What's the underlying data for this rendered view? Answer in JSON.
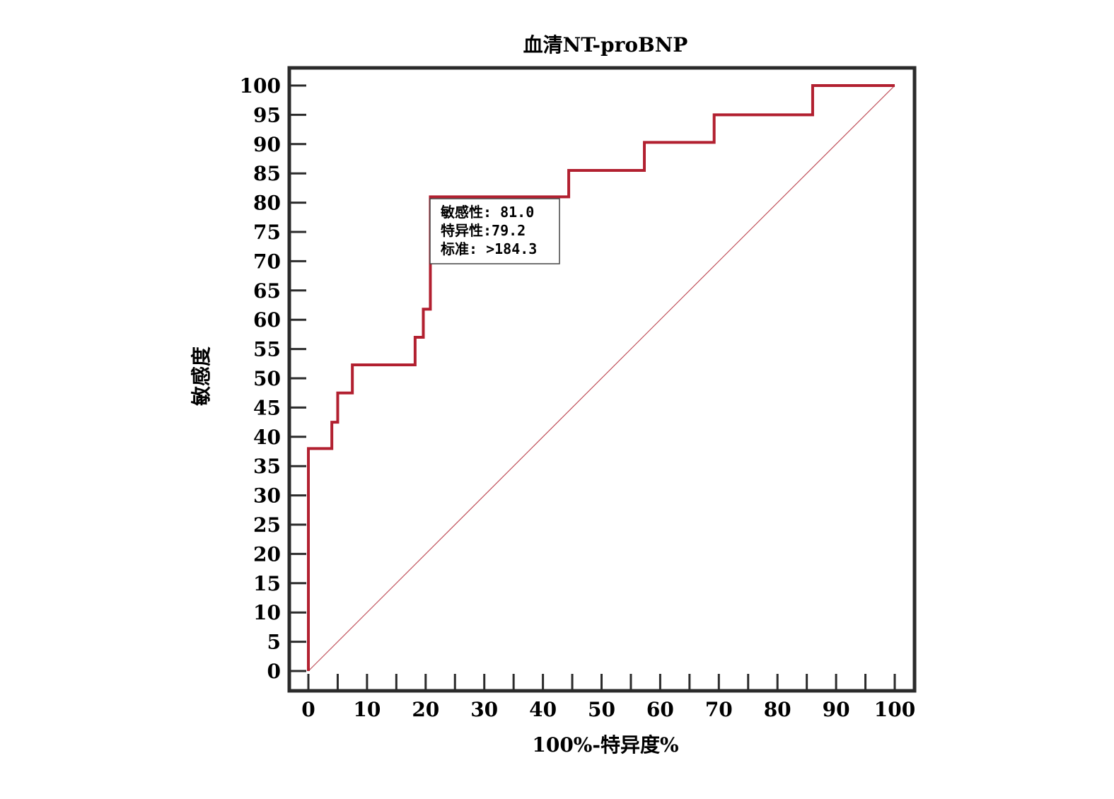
{
  "chart_data": {
    "type": "line",
    "title": "血清NT-proBNP",
    "xlabel": "100%-特异度%",
    "ylabel": "敏感度",
    "xlim": [
      0,
      100
    ],
    "ylim": [
      0,
      100
    ],
    "x_ticks": [
      0,
      10,
      20,
      30,
      40,
      50,
      60,
      70,
      80,
      90,
      100
    ],
    "y_ticks": [
      0,
      5,
      10,
      15,
      20,
      25,
      30,
      35,
      40,
      45,
      50,
      55,
      60,
      65,
      70,
      75,
      80,
      85,
      90,
      95,
      100
    ],
    "grid": false,
    "series": [
      {
        "color": "#b22030",
        "x": [
          0,
          0,
          4,
          4,
          5,
          5,
          7.5,
          7.5,
          18.2,
          18.2,
          19.6,
          19.6,
          20.8,
          20.8,
          44.4,
          44.4,
          57.3,
          57.3,
          69.2,
          69.2,
          86,
          86,
          100
        ],
        "y": [
          0,
          38,
          38,
          42.5,
          42.5,
          47.5,
          47.5,
          52.3,
          52.3,
          57,
          57,
          61.8,
          61.8,
          81,
          81,
          85.5,
          85.5,
          90.3,
          90.3,
          95,
          95,
          100,
          100
        ]
      },
      {
        "color": "#c0505a",
        "x": [
          0,
          100
        ],
        "y": [
          0,
          100
        ]
      }
    ],
    "annotation": {
      "lines": [
        "敏感性: 81.0",
        "特异性:79.2",
        "标准: >184.3"
      ]
    }
  }
}
